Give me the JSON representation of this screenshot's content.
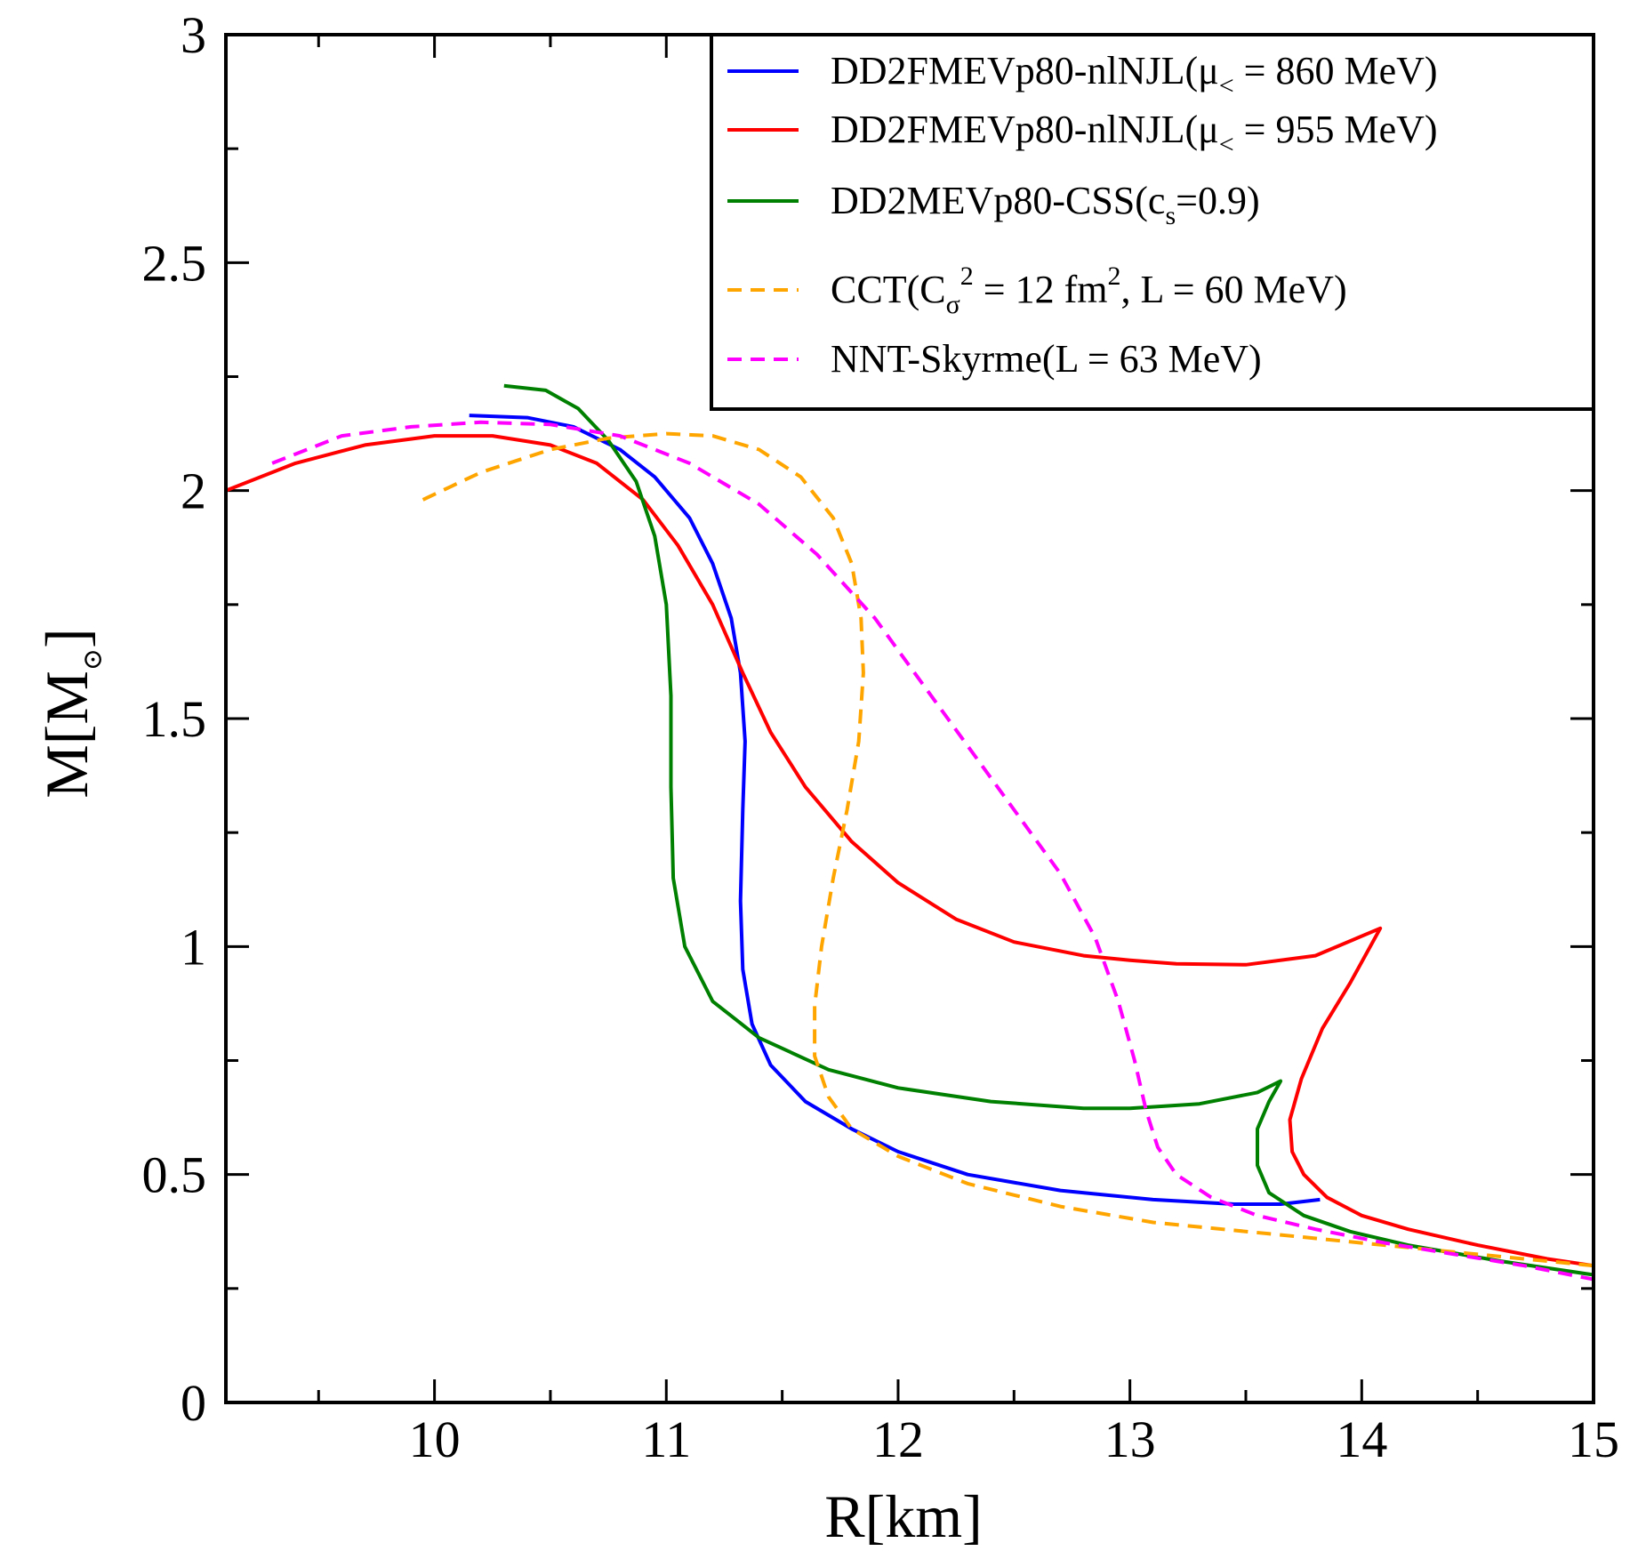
{
  "chart_data": {
    "type": "line",
    "title": "",
    "xlabel": "R[km]",
    "ylabel": "M[M⊙]",
    "xlim": [
      9.1,
      15.0
    ],
    "ylim": [
      0,
      3
    ],
    "xticks": [
      "10",
      "11",
      "12",
      "13",
      "14",
      "15"
    ],
    "xtick_values": [
      10,
      11,
      12,
      13,
      14,
      15
    ],
    "yticks": [
      "0",
      "0.5",
      "1",
      "1.5",
      "2",
      "2.5",
      "3"
    ],
    "ytick_values": [
      0,
      0.5,
      1,
      1.5,
      2,
      2.5,
      3
    ],
    "legend_position": "top-right",
    "series": [
      {
        "name": "DD2FMEVp80-nlNJL(μ< = 860 MeV)",
        "legend": {
          "pre": "DD2FMEVp80-nlNJL(μ",
          "sub": "<",
          "post": " = 860 MeV)"
        },
        "color": "#0000ff",
        "dash": "solid",
        "points": [
          [
            10.15,
            2.165
          ],
          [
            10.4,
            2.16
          ],
          [
            10.6,
            2.14
          ],
          [
            10.8,
            2.09
          ],
          [
            10.95,
            2.03
          ],
          [
            11.1,
            1.94
          ],
          [
            11.2,
            1.84
          ],
          [
            11.28,
            1.72
          ],
          [
            11.32,
            1.6
          ],
          [
            11.34,
            1.45
          ],
          [
            11.33,
            1.3
          ],
          [
            11.32,
            1.1
          ],
          [
            11.33,
            0.95
          ],
          [
            11.37,
            0.83
          ],
          [
            11.45,
            0.74
          ],
          [
            11.6,
            0.66
          ],
          [
            11.8,
            0.6
          ],
          [
            12.0,
            0.55
          ],
          [
            12.3,
            0.5
          ],
          [
            12.7,
            0.465
          ],
          [
            13.1,
            0.445
          ],
          [
            13.45,
            0.435
          ],
          [
            13.65,
            0.435
          ],
          [
            13.82,
            0.445
          ]
        ]
      },
      {
        "name": "DD2FMEVp80-nlNJL(μ< = 955 MeV)",
        "legend": {
          "pre": "DD2FMEVp80-nlNJL(μ",
          "sub": "<",
          "post": " = 955 MeV)"
        },
        "color": "#ff0000",
        "dash": "solid",
        "points": [
          [
            9.1,
            2.0
          ],
          [
            9.4,
            2.06
          ],
          [
            9.7,
            2.1
          ],
          [
            10.0,
            2.12
          ],
          [
            10.25,
            2.12
          ],
          [
            10.5,
            2.1
          ],
          [
            10.7,
            2.06
          ],
          [
            10.9,
            1.98
          ],
          [
            11.05,
            1.88
          ],
          [
            11.2,
            1.75
          ],
          [
            11.33,
            1.6
          ],
          [
            11.45,
            1.47
          ],
          [
            11.6,
            1.35
          ],
          [
            11.8,
            1.23
          ],
          [
            12.0,
            1.14
          ],
          [
            12.25,
            1.06
          ],
          [
            12.5,
            1.01
          ],
          [
            12.8,
            0.98
          ],
          [
            13.0,
            0.97
          ],
          [
            13.2,
            0.962
          ],
          [
            13.5,
            0.96
          ],
          [
            13.8,
            0.98
          ],
          [
            14.08,
            1.04
          ],
          [
            13.95,
            0.92
          ],
          [
            13.83,
            0.82
          ],
          [
            13.74,
            0.71
          ],
          [
            13.69,
            0.62
          ],
          [
            13.7,
            0.55
          ],
          [
            13.75,
            0.5
          ],
          [
            13.85,
            0.45
          ],
          [
            14.0,
            0.41
          ],
          [
            14.2,
            0.38
          ],
          [
            14.5,
            0.345
          ],
          [
            14.8,
            0.315
          ],
          [
            15.0,
            0.3
          ]
        ]
      },
      {
        "name": "DD2MEVp80-CSS(cs=0.9)",
        "legend": {
          "pre": "DD2MEVp80-CSS(c",
          "sub": "s",
          "post": "=0.9)"
        },
        "color": "#008000",
        "dash": "solid",
        "points": [
          [
            10.3,
            2.23
          ],
          [
            10.48,
            2.22
          ],
          [
            10.62,
            2.18
          ],
          [
            10.75,
            2.11
          ],
          [
            10.87,
            2.02
          ],
          [
            10.95,
            1.9
          ],
          [
            11.0,
            1.75
          ],
          [
            11.02,
            1.55
          ],
          [
            11.02,
            1.35
          ],
          [
            11.03,
            1.15
          ],
          [
            11.08,
            1.0
          ],
          [
            11.2,
            0.88
          ],
          [
            11.4,
            0.8
          ],
          [
            11.7,
            0.73
          ],
          [
            12.0,
            0.69
          ],
          [
            12.4,
            0.66
          ],
          [
            12.8,
            0.645
          ],
          [
            13.0,
            0.645
          ],
          [
            13.3,
            0.655
          ],
          [
            13.55,
            0.68
          ],
          [
            13.65,
            0.705
          ],
          [
            13.6,
            0.66
          ],
          [
            13.55,
            0.6
          ],
          [
            13.55,
            0.52
          ],
          [
            13.6,
            0.46
          ],
          [
            13.75,
            0.41
          ],
          [
            13.95,
            0.375
          ],
          [
            14.2,
            0.345
          ],
          [
            14.6,
            0.31
          ],
          [
            15.0,
            0.28
          ]
        ]
      },
      {
        "name": "CCT(Cσ^2 = 12 fm^2, L = 60 MeV)",
        "legend": {
          "pre": "CCT(C",
          "sub": "σ",
          "sup1": "2",
          "mid": " = 12 fm",
          "sup2": "2",
          "post": ", L = 60 MeV)"
        },
        "color": "#ffa500",
        "dash": "dashed",
        "points": [
          [
            9.95,
            1.98
          ],
          [
            10.2,
            2.04
          ],
          [
            10.5,
            2.09
          ],
          [
            10.75,
            2.115
          ],
          [
            11.0,
            2.125
          ],
          [
            11.2,
            2.12
          ],
          [
            11.4,
            2.09
          ],
          [
            11.58,
            2.03
          ],
          [
            11.72,
            1.94
          ],
          [
            11.8,
            1.84
          ],
          [
            11.84,
            1.72
          ],
          [
            11.85,
            1.6
          ],
          [
            11.83,
            1.45
          ],
          [
            11.78,
            1.3
          ],
          [
            11.72,
            1.15
          ],
          [
            11.67,
            1.0
          ],
          [
            11.64,
            0.87
          ],
          [
            11.64,
            0.76
          ],
          [
            11.7,
            0.67
          ],
          [
            11.8,
            0.6
          ],
          [
            12.0,
            0.54
          ],
          [
            12.3,
            0.48
          ],
          [
            12.7,
            0.43
          ],
          [
            13.1,
            0.395
          ],
          [
            13.6,
            0.37
          ],
          [
            14.0,
            0.35
          ],
          [
            14.5,
            0.325
          ],
          [
            15.0,
            0.3
          ]
        ]
      },
      {
        "name": "NNT-Skyrme(L = 63 MeV)",
        "legend": {
          "pre": "NNT-Skyrme(L = 63 MeV)",
          "sub": "",
          "post": ""
        },
        "color": "#ff00ff",
        "dash": "dashed",
        "points": [
          [
            9.3,
            2.06
          ],
          [
            9.6,
            2.12
          ],
          [
            9.9,
            2.14
          ],
          [
            10.2,
            2.15
          ],
          [
            10.5,
            2.145
          ],
          [
            10.8,
            2.12
          ],
          [
            11.1,
            2.06
          ],
          [
            11.4,
            1.97
          ],
          [
            11.65,
            1.86
          ],
          [
            11.9,
            1.72
          ],
          [
            12.1,
            1.58
          ],
          [
            12.3,
            1.44
          ],
          [
            12.5,
            1.3
          ],
          [
            12.7,
            1.16
          ],
          [
            12.85,
            1.02
          ],
          [
            12.95,
            0.88
          ],
          [
            13.02,
            0.75
          ],
          [
            13.07,
            0.64
          ],
          [
            13.12,
            0.56
          ],
          [
            13.2,
            0.5
          ],
          [
            13.35,
            0.45
          ],
          [
            13.55,
            0.41
          ],
          [
            13.8,
            0.38
          ],
          [
            14.1,
            0.35
          ],
          [
            14.4,
            0.325
          ],
          [
            14.7,
            0.3
          ],
          [
            15.0,
            0.27
          ]
        ]
      }
    ]
  }
}
